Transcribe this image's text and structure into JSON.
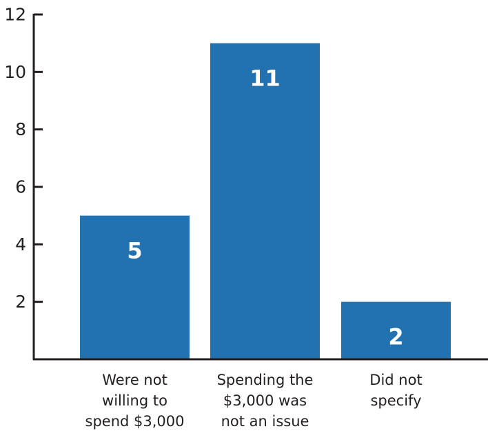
{
  "chart_data": {
    "type": "bar",
    "categories": [
      [
        "Were not",
        "willing to",
        "spend $3,000"
      ],
      [
        "Spending the",
        "$3,000 was",
        "not an issue"
      ],
      [
        "Did not",
        "specify"
      ]
    ],
    "values": [
      5,
      11,
      2
    ],
    "data_labels": [
      "5",
      "11",
      "2"
    ],
    "title": "",
    "xlabel": "",
    "ylabel": "",
    "ylim": [
      0,
      12
    ],
    "yticks": [
      2,
      4,
      6,
      8,
      10,
      12
    ],
    "ytick_labels": [
      "2",
      "4",
      "6",
      "8",
      "10",
      "12"
    ],
    "grid": false,
    "legend": "none",
    "bar_color": "#2271b1",
    "axis_color": "#231f20"
  }
}
